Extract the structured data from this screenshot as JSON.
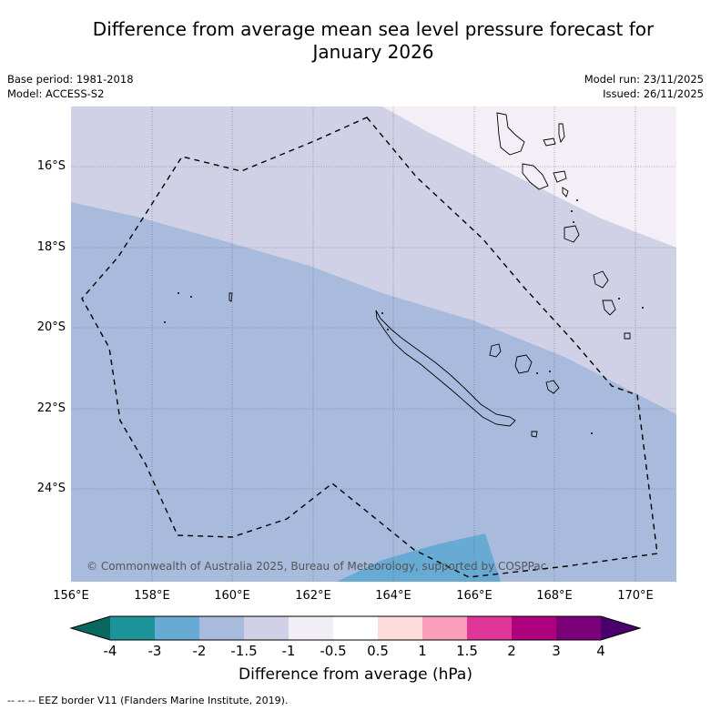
{
  "title_line1": "Difference from average mean sea level pressure forecast for",
  "title_line2": "January 2026",
  "base_period": "Base period: 1981-2018",
  "model": "Model: ACCESS-S2",
  "model_run": "Model run: 23/11/2025",
  "issued": "Issued: 26/11/2025",
  "latitude_labels": [
    "16°S",
    "18°S",
    "20°S",
    "22°S",
    "24°S"
  ],
  "longitude_labels": [
    "156°E",
    "158°E",
    "160°E",
    "162°E",
    "164°E",
    "166°E",
    "168°E",
    "170°E"
  ],
  "copyright": "© Commonwealth of Australia 2025, Bureau of Meteorology, supported by COSPPac",
  "colorbar": {
    "ticks": [
      "-4",
      "-3",
      "-2",
      "-1.5",
      "-1",
      "-0.5",
      "0.5",
      "1",
      "1.5",
      "2",
      "3",
      "4"
    ],
    "colors": [
      "#08675f",
      "#1c9399",
      "#67aad3",
      "#a8bbdc",
      "#d0d1e6",
      "#f2eef6",
      "#ffffff",
      "#fedcdb",
      "#f99fbb",
      "#de3597",
      "#ad017d",
      "#7a0177",
      "#49006a"
    ],
    "label": "Difference from average (hPa)"
  },
  "map_fill_colors": {
    "minus_2_to_1_5": "#a8bbdc",
    "minus_1_5_to_1": "#d0d1e6",
    "minus_1_to_0_5": "#f4eef6",
    "minus_3_to_2": "#67aad3",
    "eez_line": "#000000"
  },
  "footnote": "--  --  -- EEZ border V11 (Flanders Marine Institute, 2019)."
}
